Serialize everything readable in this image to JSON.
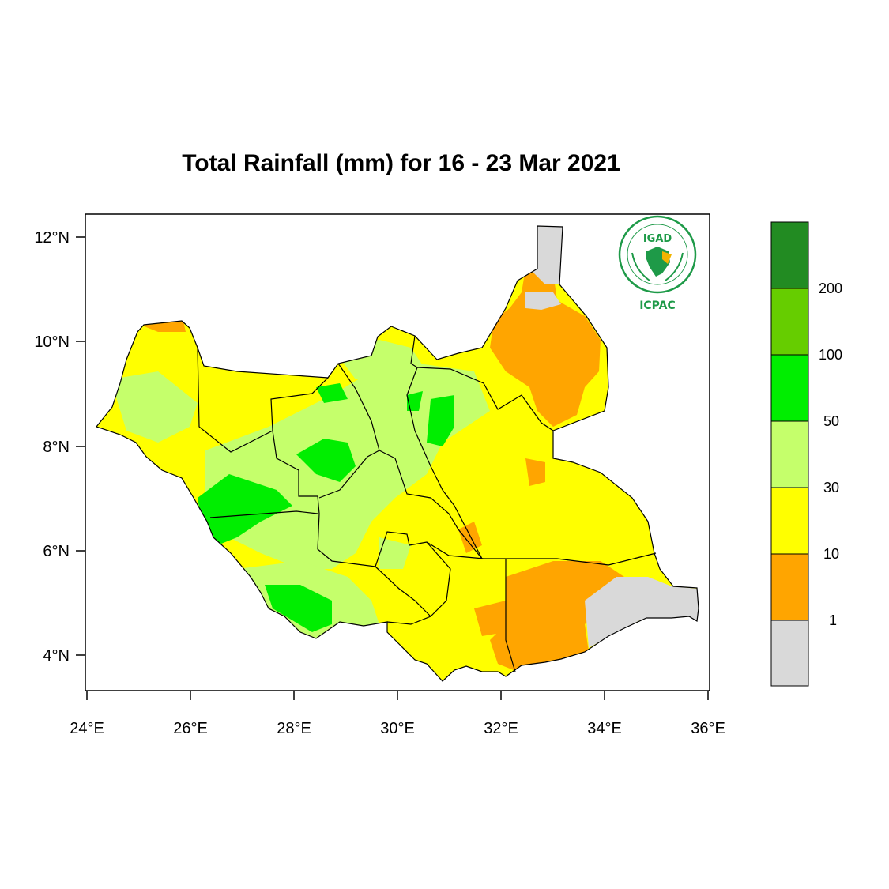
{
  "title": "Total Rainfall (mm) for 16 - 23 Mar 2021",
  "map": {
    "lon_ticks": [
      "24°E",
      "26°E",
      "28°E",
      "30°E",
      "32°E",
      "34°E",
      "36°E"
    ],
    "lat_ticks": [
      "12°N",
      "10°N",
      "8°N",
      "6°N",
      "4°N"
    ],
    "lon_range": [
      24,
      36
    ],
    "lat_range": [
      3.5,
      12.5
    ]
  },
  "legend": {
    "labels": [
      "200",
      "100",
      "50",
      "30",
      "10",
      "1"
    ],
    "colors": [
      "#228b22",
      "#66cd00",
      "#00ee00",
      "#c5ff6b",
      "#ffff00",
      "#ffa500",
      "#d9d9d9"
    ]
  },
  "logo": {
    "top_text": "IGAD",
    "bottom_text": "ICPAC",
    "ring_color": "#1e9a48"
  }
}
